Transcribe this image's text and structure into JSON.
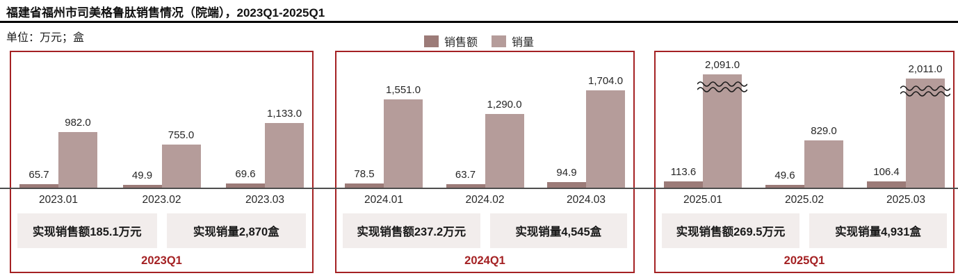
{
  "page": {
    "title": "福建省福州市司美格鲁肽销售情况（院端），2023Q1-2025Q1",
    "unit_label": "单位：万元；盒"
  },
  "colors": {
    "sales_bar": "#9c7b78",
    "volume_bar": "#b59c9a",
    "panel_border": "#a42123",
    "quarter_label": "#a42123",
    "axis_line": "#4d4d4d",
    "summary_box_bg": "#f2edec"
  },
  "chart_data": {
    "type": "bar",
    "title": "福建省福州市司美格鲁肽销售情况（院端），2023Q1-2025Q1",
    "unit_label": "单位：万元；盒",
    "grid": false,
    "legend_position": "top-center",
    "legend": [
      {
        "name": "销售额",
        "color": "#9c7b78"
      },
      {
        "name": "销量",
        "color": "#b59c9a"
      }
    ],
    "panels": [
      {
        "quarter_label": "2023Q1",
        "summary": {
          "sales": "实现销售额185.1万元",
          "volume": "实现销量2,870盒"
        },
        "months": [
          {
            "category": "2023.01",
            "sales": 65.7,
            "sales_label": "65.7",
            "volume": 982.0,
            "volume_label": "982.0",
            "volume_axis_break": false
          },
          {
            "category": "2023.02",
            "sales": 49.9,
            "sales_label": "49.9",
            "volume": 755.0,
            "volume_label": "755.0",
            "volume_axis_break": false
          },
          {
            "category": "2023.03",
            "sales": 69.6,
            "sales_label": "69.6",
            "volume": 1133.0,
            "volume_label": "1,133.0",
            "volume_axis_break": false
          }
        ]
      },
      {
        "quarter_label": "2024Q1",
        "summary": {
          "sales": "实现销售额237.2万元",
          "volume": "实现销量4,545盒"
        },
        "months": [
          {
            "category": "2024.01",
            "sales": 78.5,
            "sales_label": "78.5",
            "volume": 1551.0,
            "volume_label": "1,551.0",
            "volume_axis_break": false
          },
          {
            "category": "2024.02",
            "sales": 63.7,
            "sales_label": "63.7",
            "volume": 1290.0,
            "volume_label": "1,290.0",
            "volume_axis_break": false
          },
          {
            "category": "2024.03",
            "sales": 94.9,
            "sales_label": "94.9",
            "volume": 1704.0,
            "volume_label": "1,704.0",
            "volume_axis_break": false
          }
        ]
      },
      {
        "quarter_label": "2025Q1",
        "summary": {
          "sales": "实现销售额269.5万元",
          "volume": "实现销量4,931盒"
        },
        "months": [
          {
            "category": "2025.01",
            "sales": 113.6,
            "sales_label": "113.6",
            "volume": 2091.0,
            "volume_label": "2,091.0",
            "volume_axis_break": true
          },
          {
            "category": "2025.02",
            "sales": 49.6,
            "sales_label": "49.6",
            "volume": 829.0,
            "volume_label": "829.0",
            "volume_axis_break": false
          },
          {
            "category": "2025.03",
            "sales": 106.4,
            "sales_label": "106.4",
            "volume": 2011.0,
            "volume_label": "2,011.0",
            "volume_axis_break": true
          }
        ]
      }
    ]
  }
}
